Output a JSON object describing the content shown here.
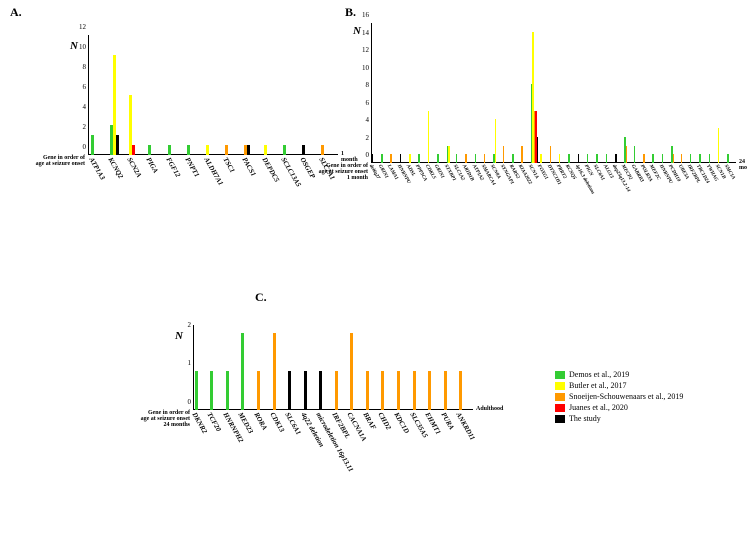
{
  "colors": {
    "demos": "#33cc33",
    "butler": "#ffff00",
    "snoeijen": "#ff9900",
    "juanes": "#ff0000",
    "study": "#000000",
    "axis": "#000000",
    "bg": "#ffffff"
  },
  "legend": [
    {
      "key": "demos",
      "label": "Demos et al., 2019"
    },
    {
      "key": "butler",
      "label": "Butler et al., 2017"
    },
    {
      "key": "snoeijen",
      "label": "Snoeijen-Schouwenaars et al., 2019"
    },
    {
      "key": "juanes",
      "label": "Juanes et al., 2020"
    },
    {
      "key": "study",
      "label": "The study"
    }
  ],
  "panelA": {
    "label": "A.",
    "y_label": "N",
    "y_max": 12,
    "y_ticks": [
      0,
      2,
      4,
      6,
      8,
      10,
      12
    ],
    "note_left": "Gene in order of\nage at seizure onset",
    "note_right": "1 month",
    "categories": [
      {
        "name": "ATP1A3",
        "bars": [
          {
            "s": "demos",
            "v": 2
          }
        ]
      },
      {
        "name": "KCNQ2",
        "bars": [
          {
            "s": "demos",
            "v": 3
          },
          {
            "s": "butler",
            "v": 10
          },
          {
            "s": "study",
            "v": 2
          }
        ]
      },
      {
        "name": "SCN2A",
        "bars": [
          {
            "s": "butler",
            "v": 6
          },
          {
            "s": "juanes",
            "v": 1
          }
        ]
      },
      {
        "name": "PIGA",
        "bars": [
          {
            "s": "demos",
            "v": 1
          }
        ]
      },
      {
        "name": "FGF12",
        "bars": [
          {
            "s": "demos",
            "v": 1
          }
        ]
      },
      {
        "name": "PNPT1",
        "bars": [
          {
            "s": "demos",
            "v": 1
          }
        ]
      },
      {
        "name": "ALDH7A1",
        "bars": [
          {
            "s": "butler",
            "v": 1
          }
        ]
      },
      {
        "name": "TSC1",
        "bars": [
          {
            "s": "snoeijen",
            "v": 1
          }
        ]
      },
      {
        "name": "PACS1",
        "bars": [
          {
            "s": "snoeijen",
            "v": 1
          },
          {
            "s": "study",
            "v": 1
          }
        ]
      },
      {
        "name": "DEPDC5",
        "bars": [
          {
            "s": "butler",
            "v": 1
          }
        ]
      },
      {
        "name": "SCLC13A5",
        "bars": [
          {
            "s": "demos",
            "v": 1
          }
        ]
      },
      {
        "name": "OSGEP",
        "bars": [
          {
            "s": "study",
            "v": 1
          }
        ]
      },
      {
        "name": "SLC2A1",
        "bars": [
          {
            "s": "snoeijen",
            "v": 1
          }
        ]
      }
    ]
  },
  "panelB": {
    "label": "B.",
    "y_label": "N",
    "y_max": 16,
    "y_ticks": [
      0,
      2,
      4,
      6,
      8,
      10,
      12,
      14,
      16
    ],
    "note_left": "Gene in order of\nage at seizure onset",
    "note_left_val": "1 month",
    "note_right": "24 months",
    "categories": [
      {
        "name": "del6q27",
        "bars": [
          {
            "s": "study",
            "v": 1
          }
        ]
      },
      {
        "name": "GRIN1",
        "bars": [
          {
            "s": "demos",
            "v": 1
          }
        ]
      },
      {
        "name": "LAMA1",
        "bars": [
          {
            "s": "snoeijen",
            "v": 1
          }
        ]
      },
      {
        "name": "HNRNPU",
        "bars": [
          {
            "s": "study",
            "v": 1
          }
        ]
      },
      {
        "name": "ADSL",
        "bars": [
          {
            "s": "butler",
            "v": 1
          }
        ]
      },
      {
        "name": "PPP3CA",
        "bars": [
          {
            "s": "demos",
            "v": 1
          }
        ]
      },
      {
        "name": "CDKL5",
        "bars": [
          {
            "s": "butler",
            "v": 6
          }
        ]
      },
      {
        "name": "GRIN1",
        "bars": [
          {
            "s": "demos",
            "v": 1
          }
        ]
      },
      {
        "name": "STXBP1",
        "bars": [
          {
            "s": "demos",
            "v": 2
          },
          {
            "s": "butler",
            "v": 2
          }
        ]
      },
      {
        "name": "SLC1A2",
        "bars": [
          {
            "s": "demos",
            "v": 1
          }
        ]
      },
      {
        "name": "ARID1B",
        "bars": [
          {
            "s": "snoeijen",
            "v": 1
          }
        ]
      },
      {
        "name": "ATP1A2",
        "bars": [
          {
            "s": "demos",
            "v": 1
          }
        ]
      },
      {
        "name": "SMARCA4",
        "bars": [
          {
            "s": "snoeijen",
            "v": 1
          }
        ]
      },
      {
        "name": "SCN8A",
        "bars": [
          {
            "s": "demos",
            "v": 1
          },
          {
            "s": "butler",
            "v": 5
          }
        ]
      },
      {
        "name": "SYNGAP1",
        "bars": [
          {
            "s": "snoeijen",
            "v": 2
          }
        ]
      },
      {
        "name": "RARS2",
        "bars": [
          {
            "s": "demos",
            "v": 1
          }
        ]
      },
      {
        "name": "KIAA2022",
        "bars": [
          {
            "s": "snoeijen",
            "v": 2
          }
        ]
      },
      {
        "name": "SCN1A",
        "bars": [
          {
            "s": "demos",
            "v": 9
          },
          {
            "s": "butler",
            "v": 15
          },
          {
            "s": "snoeijen",
            "v": 6
          },
          {
            "s": "juanes",
            "v": 6
          },
          {
            "s": "study",
            "v": 3
          }
        ]
      },
      {
        "name": "FOXG1",
        "bars": [
          {
            "s": "butler",
            "v": 1
          }
        ]
      },
      {
        "name": "DYNC1H1",
        "bars": [
          {
            "s": "snoeijen",
            "v": 2
          }
        ]
      },
      {
        "name": "PRRT2",
        "bars": [
          {
            "s": "butler",
            "v": 1
          }
        ]
      },
      {
        "name": "KCNQ5",
        "bars": [
          {
            "s": "demos",
            "v": 1
          }
        ]
      },
      {
        "name": "4p16.3 deletions",
        "bars": [
          {
            "s": "study",
            "v": 1
          }
        ]
      },
      {
        "name": "PIGN",
        "bars": [
          {
            "s": "demos",
            "v": 1
          }
        ]
      },
      {
        "name": "SLC6A1",
        "bars": [
          {
            "s": "demos",
            "v": 1
          }
        ]
      },
      {
        "name": "ALG13",
        "bars": [
          {
            "s": "demos",
            "v": 1
          }
        ]
      },
      {
        "name": "dup23q13.2-14",
        "bars": [
          {
            "s": "study",
            "v": 1
          }
        ]
      },
      {
        "name": "MECP2",
        "bars": [
          {
            "s": "demos",
            "v": 3
          },
          {
            "s": "snoeijen",
            "v": 2
          }
        ]
      },
      {
        "name": "GABRB3",
        "bars": [
          {
            "s": "demos",
            "v": 2
          }
        ]
      },
      {
        "name": "POLR3A",
        "bars": [
          {
            "s": "snoeijen",
            "v": 1
          }
        ]
      },
      {
        "name": "MEF2C",
        "bars": [
          {
            "s": "demos",
            "v": 1
          }
        ]
      },
      {
        "name": "HNRNPU",
        "bars": [
          {
            "s": "demos",
            "v": 1
          }
        ]
      },
      {
        "name": "PCDH19",
        "bars": [
          {
            "s": "demos",
            "v": 2
          },
          {
            "s": "snoeijen",
            "v": 1
          }
        ]
      },
      {
        "name": "UBE3A",
        "bars": [
          {
            "s": "snoeijen",
            "v": 1
          }
        ]
      },
      {
        "name": "IRF2BPL",
        "bars": [
          {
            "s": "demos",
            "v": 1
          }
        ]
      },
      {
        "name": "TBC1D24",
        "bars": [
          {
            "s": "demos",
            "v": 1
          }
        ]
      },
      {
        "name": "YWHAG",
        "bars": [
          {
            "s": "demos",
            "v": 1
          }
        ]
      },
      {
        "name": "SCN1B",
        "bars": [
          {
            "s": "butler",
            "v": 4
          }
        ]
      },
      {
        "name": "SMC1A",
        "bars": [
          {
            "s": "demos",
            "v": 1
          }
        ]
      }
    ]
  },
  "panelC": {
    "label": "C.",
    "y_label": "N",
    "y_max": 2.2,
    "y_ticks": [
      0,
      1,
      2
    ],
    "note_left": "Gene in order of\nage at seizure onset",
    "note_left_val": "24 months",
    "note_right": "Adulthood",
    "categories": [
      {
        "name": "DKNR2",
        "bars": [
          {
            "s": "demos",
            "v": 1
          }
        ]
      },
      {
        "name": "TCF20",
        "bars": [
          {
            "s": "demos",
            "v": 1
          }
        ]
      },
      {
        "name": "HNRNPH2",
        "bars": [
          {
            "s": "demos",
            "v": 1
          }
        ]
      },
      {
        "name": "MED23",
        "bars": [
          {
            "s": "demos",
            "v": 2
          }
        ]
      },
      {
        "name": "RORA",
        "bars": [
          {
            "s": "snoeijen",
            "v": 1
          }
        ]
      },
      {
        "name": "CDK13",
        "bars": [
          {
            "s": "snoeijen",
            "v": 2
          }
        ]
      },
      {
        "name": "SLC6A1",
        "bars": [
          {
            "s": "study",
            "v": 1
          }
        ]
      },
      {
        "name": "4q22 deletion",
        "bars": [
          {
            "s": "study",
            "v": 1
          }
        ]
      },
      {
        "name": "microdeletion 16p13.11",
        "bars": [
          {
            "s": "study",
            "v": 1
          }
        ]
      },
      {
        "name": "IRF2BPL",
        "bars": [
          {
            "s": "snoeijen",
            "v": 1
          }
        ]
      },
      {
        "name": "CACNA1A",
        "bars": [
          {
            "s": "snoeijen",
            "v": 2
          }
        ]
      },
      {
        "name": "BRAF",
        "bars": [
          {
            "s": "snoeijen",
            "v": 1
          }
        ]
      },
      {
        "name": "CHD2",
        "bars": [
          {
            "s": "snoeijen",
            "v": 1
          }
        ]
      },
      {
        "name": "KDC1D",
        "bars": [
          {
            "s": "snoeijen",
            "v": 1
          }
        ]
      },
      {
        "name": "SLC35A5",
        "bars": [
          {
            "s": "snoeijen",
            "v": 1
          }
        ]
      },
      {
        "name": "EHMT1",
        "bars": [
          {
            "s": "snoeijen",
            "v": 1
          }
        ]
      },
      {
        "name": "PURA",
        "bars": [
          {
            "s": "snoeijen",
            "v": 1
          }
        ]
      },
      {
        "name": "ANKRD11",
        "bars": [
          {
            "s": "snoeijen",
            "v": 1
          }
        ]
      }
    ]
  }
}
